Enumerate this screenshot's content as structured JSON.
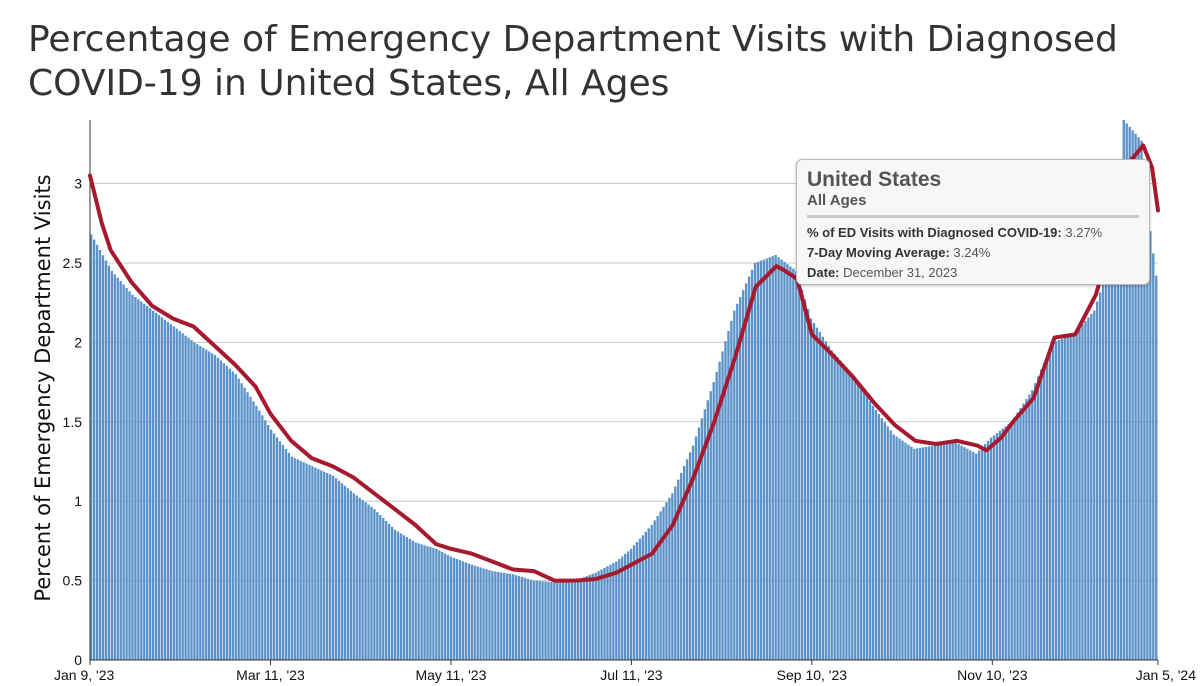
{
  "title": "Percentage of Emergency Department Visits with Diagnosed COVID-19 in United States, All Ages",
  "chart_data": {
    "type": "bar",
    "ylabel": "Percent of Emergency Department Visits",
    "ylim": [
      0,
      3.4
    ],
    "yticks": [
      0,
      0.5,
      1,
      1.5,
      2,
      2.5,
      3
    ],
    "ytick_labels": [
      "0",
      "0.5",
      "1",
      "1.5",
      "2",
      "2.5",
      "3"
    ],
    "grid": true,
    "x_range": [
      "2023-01-09",
      "2024-01-05"
    ],
    "xticks": [
      "2023-01-09",
      "2023-03-11",
      "2023-05-11",
      "2023-07-11",
      "2023-09-10",
      "2023-11-10",
      "2024-01-05"
    ],
    "xtick_labels": [
      "Jan 9, '23",
      "Mar 11, '23",
      "May 11, '23",
      "Jul 11, '23",
      "Sep 10, '23",
      "Nov 10, '23",
      "Jan 5, '24"
    ],
    "series": [
      {
        "name": "% of ED Visits with Diagnosed COVID-19",
        "kind": "bar",
        "color": "#5b92c8",
        "points": [
          [
            "2023-01-09",
            2.68
          ],
          [
            "2023-01-16",
            2.45
          ],
          [
            "2023-01-23",
            2.3
          ],
          [
            "2023-01-30",
            2.2
          ],
          [
            "2023-02-06",
            2.1
          ],
          [
            "2023-02-13",
            2.0
          ],
          [
            "2023-02-20",
            1.92
          ],
          [
            "2023-02-27",
            1.8
          ],
          [
            "2023-03-06",
            1.6
          ],
          [
            "2023-03-11",
            1.45
          ],
          [
            "2023-03-18",
            1.28
          ],
          [
            "2023-03-25",
            1.22
          ],
          [
            "2023-04-01",
            1.16
          ],
          [
            "2023-04-08",
            1.05
          ],
          [
            "2023-04-15",
            0.95
          ],
          [
            "2023-04-22",
            0.82
          ],
          [
            "2023-04-29",
            0.74
          ],
          [
            "2023-05-06",
            0.7
          ],
          [
            "2023-05-11",
            0.65
          ],
          [
            "2023-05-18",
            0.6
          ],
          [
            "2023-05-25",
            0.56
          ],
          [
            "2023-06-01",
            0.54
          ],
          [
            "2023-06-08",
            0.5
          ],
          [
            "2023-06-15",
            0.49
          ],
          [
            "2023-06-22",
            0.5
          ],
          [
            "2023-06-29",
            0.55
          ],
          [
            "2023-07-06",
            0.62
          ],
          [
            "2023-07-11",
            0.7
          ],
          [
            "2023-07-18",
            0.85
          ],
          [
            "2023-07-25",
            1.05
          ],
          [
            "2023-08-01",
            1.35
          ],
          [
            "2023-08-08",
            1.75
          ],
          [
            "2023-08-15",
            2.2
          ],
          [
            "2023-08-22",
            2.5
          ],
          [
            "2023-08-29",
            2.55
          ],
          [
            "2023-09-05",
            2.45
          ],
          [
            "2023-09-10",
            2.15
          ],
          [
            "2023-09-17",
            1.95
          ],
          [
            "2023-09-24",
            1.8
          ],
          [
            "2023-10-01",
            1.6
          ],
          [
            "2023-10-08",
            1.42
          ],
          [
            "2023-10-15",
            1.33
          ],
          [
            "2023-10-22",
            1.35
          ],
          [
            "2023-10-29",
            1.37
          ],
          [
            "2023-11-05",
            1.3
          ],
          [
            "2023-11-10",
            1.4
          ],
          [
            "2023-11-17",
            1.5
          ],
          [
            "2023-11-24",
            1.7
          ],
          [
            "2023-12-01",
            2.0
          ],
          [
            "2023-12-08",
            2.05
          ],
          [
            "2023-12-15",
            2.2
          ],
          [
            "2023-12-22",
            2.6
          ],
          [
            "2023-12-25",
            3.4
          ],
          [
            "2023-12-31",
            3.27
          ],
          [
            "2024-01-03",
            2.7
          ],
          [
            "2024-01-05",
            2.42
          ]
        ]
      },
      {
        "name": "7-Day Moving Average",
        "kind": "line",
        "color": "#a6192e",
        "points": [
          [
            "2023-01-09",
            3.05
          ],
          [
            "2023-01-13",
            2.75
          ],
          [
            "2023-01-16",
            2.58
          ],
          [
            "2023-01-23",
            2.38
          ],
          [
            "2023-01-30",
            2.23
          ],
          [
            "2023-02-06",
            2.15
          ],
          [
            "2023-02-13",
            2.1
          ],
          [
            "2023-02-20",
            1.98
          ],
          [
            "2023-02-27",
            1.86
          ],
          [
            "2023-03-06",
            1.72
          ],
          [
            "2023-03-11",
            1.55
          ],
          [
            "2023-03-18",
            1.38
          ],
          [
            "2023-03-25",
            1.27
          ],
          [
            "2023-04-01",
            1.22
          ],
          [
            "2023-04-08",
            1.15
          ],
          [
            "2023-04-15",
            1.05
          ],
          [
            "2023-04-22",
            0.95
          ],
          [
            "2023-04-29",
            0.85
          ],
          [
            "2023-05-06",
            0.73
          ],
          [
            "2023-05-11",
            0.7
          ],
          [
            "2023-05-18",
            0.67
          ],
          [
            "2023-05-25",
            0.62
          ],
          [
            "2023-06-01",
            0.57
          ],
          [
            "2023-06-08",
            0.56
          ],
          [
            "2023-06-15",
            0.5
          ],
          [
            "2023-06-22",
            0.5
          ],
          [
            "2023-06-29",
            0.51
          ],
          [
            "2023-07-06",
            0.55
          ],
          [
            "2023-07-11",
            0.6
          ],
          [
            "2023-07-18",
            0.67
          ],
          [
            "2023-07-25",
            0.85
          ],
          [
            "2023-08-01",
            1.15
          ],
          [
            "2023-08-08",
            1.5
          ],
          [
            "2023-08-15",
            1.9
          ],
          [
            "2023-08-22",
            2.35
          ],
          [
            "2023-08-29",
            2.48
          ],
          [
            "2023-09-01",
            2.45
          ],
          [
            "2023-09-05",
            2.4
          ],
          [
            "2023-09-10",
            2.05
          ],
          [
            "2023-09-17",
            1.92
          ],
          [
            "2023-09-24",
            1.78
          ],
          [
            "2023-10-01",
            1.62
          ],
          [
            "2023-10-08",
            1.48
          ],
          [
            "2023-10-15",
            1.38
          ],
          [
            "2023-10-22",
            1.36
          ],
          [
            "2023-10-29",
            1.38
          ],
          [
            "2023-11-05",
            1.35
          ],
          [
            "2023-11-08",
            1.32
          ],
          [
            "2023-11-13",
            1.4
          ],
          [
            "2023-11-17",
            1.5
          ],
          [
            "2023-11-24",
            1.65
          ],
          [
            "2023-12-01",
            2.03
          ],
          [
            "2023-12-08",
            2.05
          ],
          [
            "2023-12-15",
            2.3
          ],
          [
            "2023-12-22",
            2.75
          ],
          [
            "2023-12-27",
            3.15
          ],
          [
            "2023-12-31",
            3.24
          ],
          [
            "2024-01-03",
            3.1
          ],
          [
            "2024-01-05",
            2.83
          ]
        ]
      }
    ],
    "tooltip": {
      "title": "United States",
      "subtitle": "All Ages",
      "rows": [
        {
          "label": "% of ED Visits with Diagnosed COVID-19:",
          "value": "3.27%"
        },
        {
          "label": "7-Day Moving Average:",
          "value": "3.24%"
        },
        {
          "label": "Date:",
          "value": "December 31, 2023"
        }
      ]
    }
  }
}
